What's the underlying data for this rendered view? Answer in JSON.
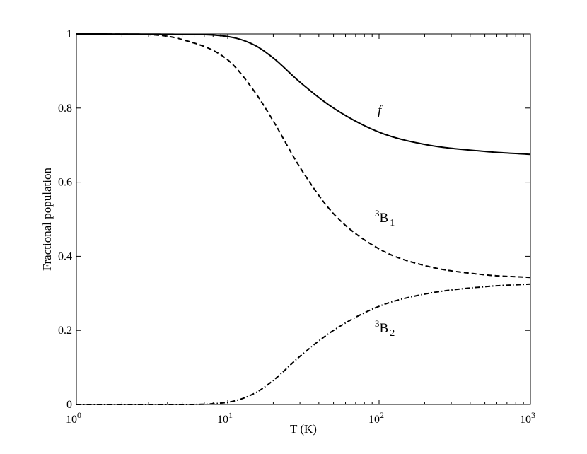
{
  "chart_data": {
    "type": "line",
    "title": "",
    "xlabel": "T (K)",
    "ylabel": "Fractional population",
    "x_scale": "log",
    "xlim": [
      1,
      1000
    ],
    "ylim": [
      0,
      1
    ],
    "x_ticks": [
      {
        "value": 1,
        "base": "10",
        "exp": "0"
      },
      {
        "value": 10,
        "base": "10",
        "exp": "1"
      },
      {
        "value": 100,
        "base": "10",
        "exp": "2"
      },
      {
        "value": 1000,
        "base": "10",
        "exp": "3"
      }
    ],
    "y_ticks": [
      {
        "value": 0,
        "label": "0"
      },
      {
        "value": 0.2,
        "label": "0.2"
      },
      {
        "value": 0.4,
        "label": "0.4"
      },
      {
        "value": 0.6,
        "label": "0.6"
      },
      {
        "value": 0.8,
        "label": "0.8"
      },
      {
        "value": 1,
        "label": "1"
      }
    ],
    "grid": false,
    "legend": "none",
    "series": [
      {
        "name": "f",
        "style": "solid",
        "label": {
          "pre": "",
          "main": "f",
          "sub": "",
          "italic": true
        },
        "x": [
          1,
          5,
          10,
          15,
          20,
          30,
          50,
          100,
          200,
          500,
          1000
        ],
        "y": [
          1.0,
          0.999,
          0.993,
          0.97,
          0.935,
          0.87,
          0.8,
          0.735,
          0.702,
          0.683,
          0.675
        ]
      },
      {
        "name": "3B1",
        "style": "dashed",
        "label": {
          "pre": "3",
          "main": "B",
          "sub": "1",
          "italic": false
        },
        "x": [
          1,
          3,
          5,
          10,
          15,
          20,
          30,
          50,
          100,
          200,
          500,
          1000
        ],
        "y": [
          1.0,
          0.998,
          0.985,
          0.93,
          0.845,
          0.765,
          0.64,
          0.515,
          0.42,
          0.375,
          0.35,
          0.343
        ]
      },
      {
        "name": "3B2",
        "style": "dashdot",
        "label": {
          "pre": "3",
          "main": "B",
          "sub": "2",
          "italic": false
        },
        "x": [
          1,
          5,
          10,
          15,
          20,
          30,
          50,
          100,
          200,
          500,
          1000
        ],
        "y": [
          0.0,
          0.0,
          0.006,
          0.03,
          0.065,
          0.13,
          0.2,
          0.265,
          0.298,
          0.318,
          0.325
        ]
      }
    ]
  }
}
